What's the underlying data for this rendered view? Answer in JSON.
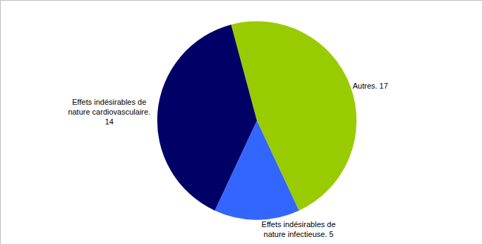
{
  "chart_data": {
    "type": "pie",
    "categories": [
      "Autres",
      "Effets indésirables de nature infectieuse",
      "Effets indésirables de nature cardiovasculaire"
    ],
    "values": [
      17,
      5,
      14
    ],
    "value_labels": [
      "Autres. 17",
      "Effets indésirables de nature infectieuse. 5",
      "Effets indésirables de nature cardiovasculaire. 14"
    ],
    "colors": [
      "#99cc00",
      "#3366ff",
      "#000066"
    ],
    "data_labels": true
  }
}
